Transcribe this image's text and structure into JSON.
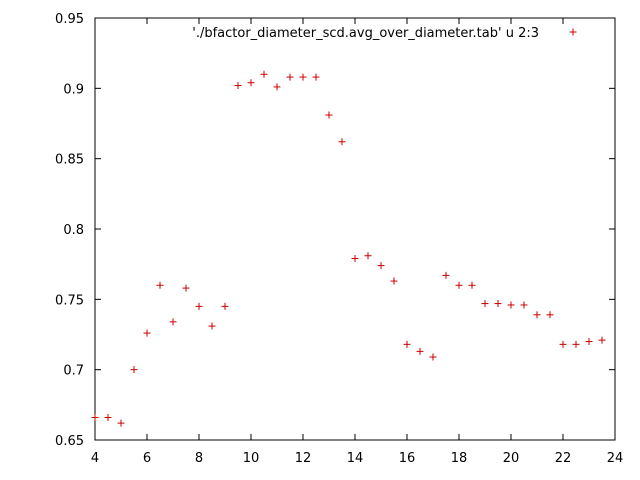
{
  "chart_data": {
    "type": "scatter",
    "title": "",
    "xlabel": "",
    "ylabel": "",
    "xlim": [
      4,
      24
    ],
    "ylim": [
      0.65,
      0.95
    ],
    "xticks": [
      4,
      6,
      8,
      10,
      12,
      14,
      16,
      18,
      20,
      22,
      24
    ],
    "yticks": [
      0.65,
      0.7,
      0.75,
      0.8,
      0.85,
      0.9,
      0.95
    ],
    "xtick_labels": [
      "4",
      "6",
      "8",
      "10",
      "12",
      "14",
      "16",
      "18",
      "20",
      "22",
      "24"
    ],
    "ytick_labels": [
      "0.65",
      "0.7",
      "0.75",
      "0.8",
      "0.85",
      "0.9",
      "0.95"
    ],
    "grid": false,
    "legend_position": "top-right",
    "marker": "plus",
    "color": "#cc0000",
    "series": [
      {
        "name": "'./bfactor_diameter_scd.avg_over_diameter.tab' u 2:3",
        "x": [
          4.0,
          4.5,
          5.0,
          5.5,
          6.0,
          6.5,
          7.0,
          7.5,
          8.0,
          8.5,
          9.0,
          9.5,
          10.0,
          10.5,
          11.0,
          11.5,
          12.0,
          12.5,
          13.0,
          13.5,
          14.0,
          14.5,
          15.0,
          15.5,
          16.0,
          16.5,
          17.0,
          17.5,
          18.0,
          18.5,
          19.0,
          19.5,
          20.0,
          20.5,
          21.0,
          21.5,
          22.0,
          22.5,
          23.0,
          23.5
        ],
        "y": [
          0.666,
          0.666,
          0.662,
          0.7,
          0.726,
          0.76,
          0.734,
          0.758,
          0.745,
          0.731,
          0.745,
          0.902,
          0.904,
          0.91,
          0.901,
          0.908,
          0.908,
          0.908,
          0.881,
          0.862,
          0.779,
          0.781,
          0.774,
          0.763,
          0.718,
          0.713,
          0.709,
          0.767,
          0.76,
          0.76,
          0.747,
          0.747,
          0.746,
          0.746,
          0.739,
          0.739,
          0.718,
          0.718,
          0.72,
          0.721
        ]
      }
    ]
  }
}
